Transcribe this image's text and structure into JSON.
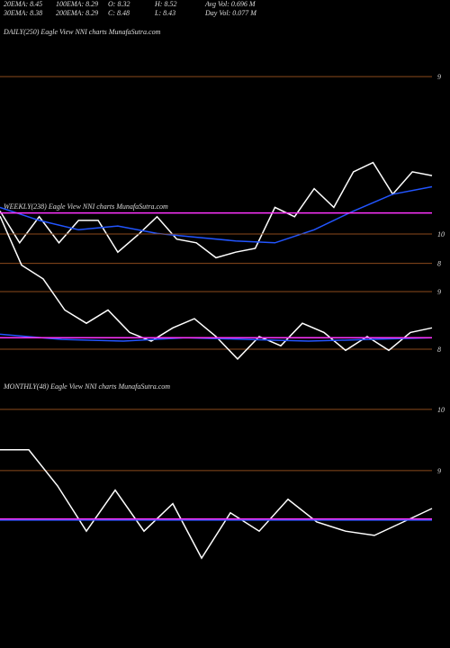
{
  "header": [
    "20EMA: 8.45",
    "100EMA: 8.29",
    "O: 8.32",
    "H: 8.52",
    "Avg Vol: 0.696  M",
    "30EMA: 8.38",
    "200EMA: 8.29",
    "C: 8.48",
    "L: 8.43",
    "Day Vol: 0.077  M"
  ],
  "chart_data": [
    {
      "type": "line",
      "title": "DAILY(250) Eagle  View  NNI charts MunafaSutra.com",
      "ylim": [
        7.82,
        9.41
      ],
      "yticks": [
        9,
        8
      ],
      "grid": true,
      "series": [
        {
          "color": "#ffffff",
          "values": [
            8.28,
            8.11,
            8.25,
            8.11,
            8.23,
            8.23,
            8.06,
            8.15,
            8.25,
            8.13,
            8.11,
            8.03,
            8.06,
            8.08,
            8.3,
            8.25,
            8.4,
            8.3,
            8.49,
            8.54,
            8.37,
            8.49,
            8.47
          ]
        },
        {
          "color": "#2255ff",
          "values": [
            8.3,
            8.23,
            8.18,
            8.2,
            8.16,
            8.14,
            8.12,
            8.11,
            8.18,
            8.28,
            8.37,
            8.41
          ]
        },
        {
          "color": "#ff33ff",
          "values": [
            8.27,
            8.27
          ]
        }
      ]
    },
    {
      "type": "line",
      "title": "WEEKLY(238) Eagle  View  NNI charts MunafaSutra.com",
      "ylim": [
        7.5,
        10.5
      ],
      "yticks": [
        10,
        9,
        8
      ],
      "grid": true,
      "series": [
        {
          "color": "#ffffff",
          "values": [
            10.31,
            9.46,
            9.22,
            8.68,
            8.45,
            8.68,
            8.29,
            8.14,
            8.37,
            8.53,
            8.22,
            7.83,
            8.22,
            8.06,
            8.45,
            8.29,
            7.98,
            8.22,
            7.98,
            8.29,
            8.37
          ]
        },
        {
          "color": "#2255ff",
          "values": [
            8.26,
            8.17,
            8.14,
            8.2,
            8.17,
            8.14,
            8.17,
            8.2
          ]
        },
        {
          "color": "#ff33ff",
          "values": [
            8.2,
            8.2
          ]
        }
      ]
    },
    {
      "type": "line",
      "title": "MONTHLY(48) Eagle  View  NNI charts MunafaSutra.com",
      "ylim": [
        6.1,
        10.44
      ],
      "yticks": [
        10,
        9
      ],
      "grid": true,
      "series": [
        {
          "color": "#ffffff",
          "values": [
            9.34,
            9.34,
            8.75,
            8.01,
            8.68,
            8.01,
            8.46,
            7.57,
            8.31,
            8.01,
            8.53,
            8.16,
            8.01,
            7.94,
            8.16,
            8.38
          ]
        },
        {
          "color": "#2255ff",
          "values": [
            8.19,
            8.19
          ]
        },
        {
          "color": "#ff33ff",
          "values": [
            8.21,
            8.21
          ]
        }
      ]
    }
  ]
}
